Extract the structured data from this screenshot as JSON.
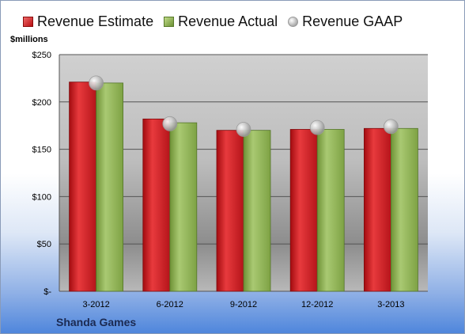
{
  "unit_label": "$millions",
  "company": "Shanda Games",
  "colors": {
    "estimate": "#c8161b",
    "actual": "#8cb050",
    "gaap": "#c0c0c0"
  },
  "chart_data": {
    "type": "bar",
    "title": "",
    "xlabel": "",
    "ylabel": "$millions",
    "ylim": [
      0,
      250
    ],
    "yticks": [
      0,
      50,
      100,
      150,
      200,
      250
    ],
    "ytick_labels": [
      "$-",
      "$50",
      "$100",
      "$150",
      "$200",
      "$250"
    ],
    "categories": [
      "3-2012",
      "6-2012",
      "9-2012",
      "12-2012",
      "3-2013"
    ],
    "legend_position": "top",
    "grid": true,
    "series": [
      {
        "name": "Revenue Estimate",
        "type": "bar",
        "values": [
          221,
          182,
          170,
          171,
          172
        ]
      },
      {
        "name": "Revenue Actual",
        "type": "bar",
        "values": [
          220,
          178,
          170,
          171,
          172
        ]
      },
      {
        "name": "Revenue GAAP",
        "type": "marker",
        "values": [
          220,
          177,
          171,
          173,
          174
        ]
      }
    ]
  }
}
